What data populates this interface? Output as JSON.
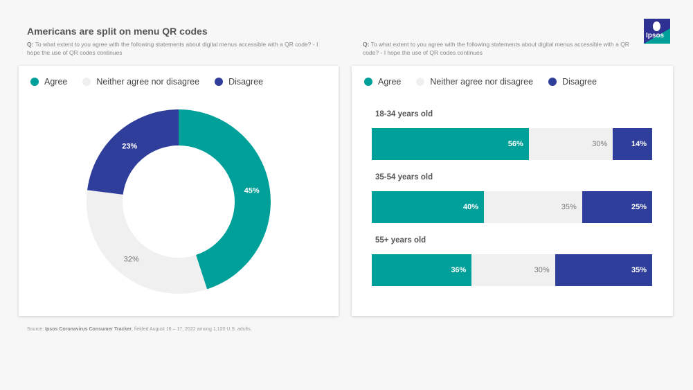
{
  "title": "Americans are split on menu QR codes",
  "question_prefix": "Q:",
  "left_question": "To what extent to you agree with the following statements about digital menus accessible with a QR code? - I hope the use of QR codes continues",
  "right_question": "To what extent to you agree with the following statements about digital menus accessible with a QR code? - I hope the use of QR codes continues",
  "logo_text": "Ipsos",
  "legend": [
    {
      "label": "Agree",
      "color": "#00a09a"
    },
    {
      "label": "Neither agree nor disagree",
      "color": "#f0f0f0"
    },
    {
      "label": "Disagree",
      "color": "#2e3e9a"
    }
  ],
  "chart_data": [
    {
      "type": "pie",
      "subtype": "donut",
      "title": "",
      "categories": [
        "Agree",
        "Neither agree nor disagree",
        "Disagree"
      ],
      "values": [
        45,
        32,
        23
      ],
      "labels": [
        "45%",
        "32%",
        "23%"
      ],
      "colors": [
        "#00a09a",
        "#f0f0f0",
        "#2e3e9a"
      ]
    },
    {
      "type": "bar",
      "subtype": "stacked-horizontal-100",
      "categories": [
        "18-34 years old",
        "35-54 years old",
        "55+ years old"
      ],
      "series": [
        {
          "name": "Agree",
          "values": [
            56,
            40,
            36
          ],
          "color": "#00a09a"
        },
        {
          "name": "Neither agree nor disagree",
          "values": [
            30,
            35,
            30
          ],
          "color": "#f0f0f0"
        },
        {
          "name": "Disagree",
          "values": [
            14,
            25,
            35
          ],
          "color": "#2e3e9a"
        }
      ],
      "xlim": [
        0,
        100
      ]
    }
  ],
  "source_prefix": "Source: ",
  "source_bold": "Ipsos Coronavirus Consumer Tracker",
  "source_rest": ", fielded August 16 – 17, 2022 among 1,120 U.S. adults."
}
